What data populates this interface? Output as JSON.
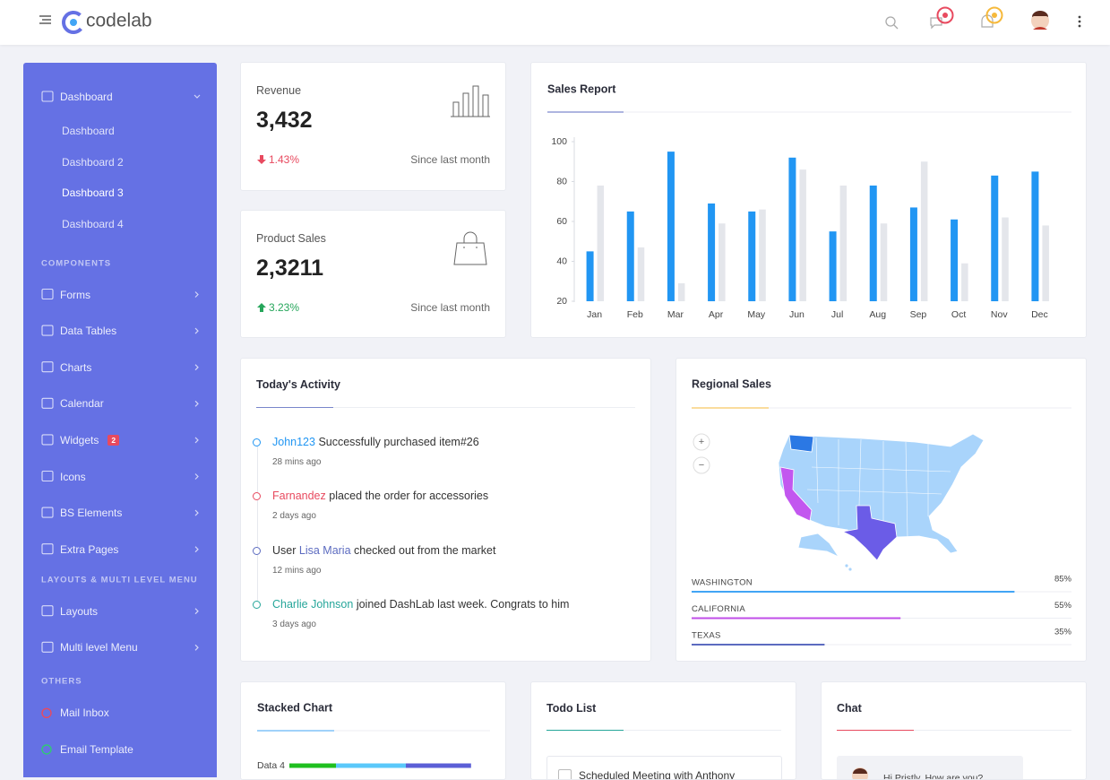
{
  "header": {
    "logo": "codelab"
  },
  "sidebar": {
    "sections": [
      {
        "items": [
          {
            "label": "Dashboard",
            "expanded": true,
            "children": [
              "Dashboard",
              "Dashboard 2",
              "Dashboard 3",
              "Dashboard 4"
            ],
            "active_child": 2
          }
        ]
      },
      {
        "title": "COMPONENTS",
        "items": [
          {
            "label": "Forms"
          },
          {
            "label": "Data Tables"
          },
          {
            "label": "Charts"
          },
          {
            "label": "Calendar"
          },
          {
            "label": "Widgets",
            "badge": "2"
          },
          {
            "label": "Icons"
          },
          {
            "label": "BS Elements"
          },
          {
            "label": "Extra Pages"
          }
        ]
      },
      {
        "title": "LAYOUTS & MULTI LEVEL MENU",
        "items": [
          {
            "label": "Layouts"
          },
          {
            "label": "Multi level Menu"
          }
        ]
      },
      {
        "title": "OTHERS",
        "items": [
          {
            "label": "Mail Inbox",
            "dot": "#e84a5f"
          },
          {
            "label": "Email Template",
            "dot": "#2ecc71"
          }
        ]
      }
    ]
  },
  "stats": [
    {
      "title": "Revenue",
      "value": "3,432",
      "change": "1.43%",
      "trend": "down",
      "note": "Since last month"
    },
    {
      "title": "Product Sales",
      "value": "2,3211",
      "change": "3.23%",
      "trend": "up",
      "note": "Since last month"
    }
  ],
  "chart_data": [
    {
      "type": "bar",
      "title": "Sales Report",
      "categories": [
        "Jan",
        "Feb",
        "Mar",
        "Apr",
        "May",
        "Jun",
        "Jul",
        "Aug",
        "Sep",
        "Oct",
        "Nov",
        "Dec"
      ],
      "series": [
        {
          "color": "#2196f3",
          "values": [
            45,
            65,
            95,
            69,
            65,
            92,
            55,
            78,
            67,
            61,
            83,
            85
          ]
        },
        {
          "color": "#e4e6eb",
          "values": [
            78,
            47,
            29,
            59,
            66,
            86,
            78,
            59,
            90,
            39,
            62,
            58
          ]
        }
      ],
      "ylim": [
        20,
        100
      ],
      "yticks": [
        20,
        40,
        60,
        80,
        100
      ]
    },
    {
      "type": "stacked-bar",
      "title": "Stacked Chart",
      "categories": [
        "Data 4"
      ],
      "series": [
        {
          "color": "#1fbf1f",
          "values": [
            20
          ]
        },
        {
          "color": "#5ac8fa",
          "values": [
            30
          ]
        },
        {
          "color": "#5b5fd6",
          "values": [
            28
          ]
        }
      ]
    }
  ],
  "activity": {
    "title": "Today's Activity",
    "items": [
      {
        "name": "John123",
        "after": " Successfully purchased item#26",
        "time": "28 mins ago",
        "color": "#2196f3"
      },
      {
        "name": "Farnandez",
        "after": " placed the order for accessories",
        "time": "2 days ago",
        "color": "#e84a5f"
      },
      {
        "before": "User ",
        "name": "Lisa Maria",
        "after": " checked out from the market",
        "time": "12 mins ago",
        "color": "#5c6bc0"
      },
      {
        "name": "Charlie Johnson",
        "after": " joined DashLab last week. Congrats to him",
        "time": "3 days ago",
        "color": "#26a69a"
      }
    ]
  },
  "regional": {
    "title": "Regional Sales",
    "map_controls": [
      "+",
      "−"
    ],
    "items": [
      {
        "name": "WASHINGTON",
        "value": 85,
        "label": "85%",
        "color": "#42a5f5"
      },
      {
        "name": "CALIFORNIA",
        "value": 55,
        "label": "55%",
        "color": "#c04ee8"
      },
      {
        "name": "TEXAS",
        "value": 35,
        "label": "35%",
        "color": "#5c6bc0"
      }
    ]
  },
  "todo": {
    "title": "Todo List",
    "items": [
      "Scheduled Meeting with Anthony"
    ]
  },
  "chat": {
    "title": "Chat",
    "messages": [
      "Hi Pristly, How are you?"
    ]
  }
}
